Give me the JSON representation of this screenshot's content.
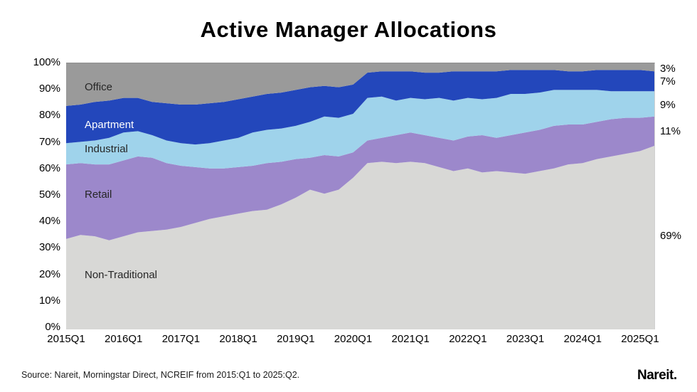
{
  "title": "Active Manager Allocations",
  "source_note": "Source: Nareit, Morningstar Direct, NCREIF from 2015:Q1 to 2025:Q2.",
  "logo": {
    "text": "Nareit",
    "period": "."
  },
  "chart_data": {
    "type": "area",
    "stacked": true,
    "unit": "%",
    "ylim": [
      0,
      100
    ],
    "grid": false,
    "legend_position": "labels-inside-areas",
    "y_axis_ticks": [
      "100%",
      "90%",
      "80%",
      "70%",
      "60%",
      "50%",
      "40%",
      "30%",
      "20%",
      "10%",
      "0%"
    ],
    "x_axis_ticks": [
      "2015Q1",
      "2016Q1",
      "2017Q1",
      "2018Q1",
      "2019Q1",
      "2020Q1",
      "2021Q1",
      "2022Q1",
      "2023Q1",
      "2024Q1",
      "2025Q1"
    ],
    "x": [
      "2015Q1",
      "2015Q2",
      "2015Q3",
      "2015Q4",
      "2016Q1",
      "2016Q2",
      "2016Q3",
      "2016Q4",
      "2017Q1",
      "2017Q2",
      "2017Q3",
      "2017Q4",
      "2018Q1",
      "2018Q2",
      "2018Q3",
      "2018Q4",
      "2019Q1",
      "2019Q2",
      "2019Q3",
      "2019Q4",
      "2020Q1",
      "2020Q2",
      "2020Q3",
      "2020Q4",
      "2021Q1",
      "2021Q2",
      "2021Q3",
      "2021Q4",
      "2022Q1",
      "2022Q2",
      "2022Q3",
      "2022Q4",
      "2023Q1",
      "2023Q2",
      "2023Q3",
      "2023Q4",
      "2024Q1",
      "2024Q2",
      "2024Q3",
      "2024Q4",
      "2025Q1",
      "2025Q2"
    ],
    "series": [
      {
        "name": "Non-Traditional",
        "color": "#d8d8d6",
        "end_label": "69%",
        "values": [
          34,
          35.5,
          35,
          33.5,
          35,
          36.5,
          37,
          37.5,
          38.5,
          40,
          41.5,
          42.5,
          43.5,
          44.5,
          45,
          47,
          49.5,
          52.5,
          51,
          52.5,
          57,
          62.5,
          63,
          62.5,
          63,
          62.5,
          61,
          59.5,
          60.5,
          59,
          59.5,
          59,
          58.5,
          59.5,
          60.5,
          62,
          62.5,
          64,
          65,
          66,
          67,
          69
        ]
      },
      {
        "name": "Retail",
        "color": "#9c88cb",
        "end_label": "11%",
        "values": [
          28,
          27,
          27,
          28.5,
          28.5,
          28.5,
          27.5,
          25,
          23,
          21,
          19,
          18,
          17.5,
          17,
          17.5,
          16,
          14.5,
          12,
          14.5,
          12.5,
          9.5,
          8.5,
          9,
          10.5,
          11,
          10.5,
          11,
          11.5,
          12,
          14,
          12.5,
          14,
          15.5,
          15.5,
          16,
          15,
          14.5,
          14,
          14,
          13.5,
          12.5,
          11
        ]
      },
      {
        "name": "Industrial",
        "color": "#9fd3eb",
        "end_label": "9%",
        "values": [
          8,
          8,
          9,
          10,
          10.5,
          9.5,
          8.5,
          8.5,
          8.5,
          8.5,
          9.5,
          10.5,
          11,
          12.5,
          12.5,
          12.5,
          12.5,
          13.5,
          14.5,
          14.5,
          14.5,
          16,
          15.5,
          13,
          13,
          13.5,
          15,
          15,
          14.5,
          13.5,
          15,
          15.5,
          14.5,
          14,
          13.5,
          13,
          13,
          12,
          10.5,
          10,
          10,
          9.5
        ]
      },
      {
        "name": "Apartment",
        "color": "#2347bb",
        "end_label": "7%",
        "values": [
          14,
          14,
          14.5,
          14,
          13,
          12.5,
          12.5,
          14,
          14.5,
          15,
          15,
          14.5,
          14.5,
          13.5,
          13.5,
          13.5,
          13.5,
          13,
          11.5,
          11.5,
          11,
          9.5,
          9.5,
          11,
          10,
          10,
          9.5,
          11,
          10,
          10.5,
          10,
          9,
          9,
          8.5,
          7.5,
          7,
          7,
          7.5,
          8,
          8,
          8,
          7.5
        ]
      },
      {
        "name": "Office",
        "color": "#9a9a9a",
        "end_label": "3%",
        "values": [
          16,
          15.5,
          14.5,
          14,
          13,
          13,
          14.5,
          15,
          15.5,
          15.5,
          15,
          14.5,
          13.5,
          12.5,
          11.5,
          11,
          10,
          9,
          8.5,
          9,
          8,
          3.5,
          3,
          3,
          3,
          3.5,
          3.5,
          3,
          3,
          3,
          3,
          2.5,
          2.5,
          2.5,
          2.5,
          3,
          3,
          2.5,
          2.5,
          2.5,
          2.5,
          3
        ]
      }
    ]
  }
}
